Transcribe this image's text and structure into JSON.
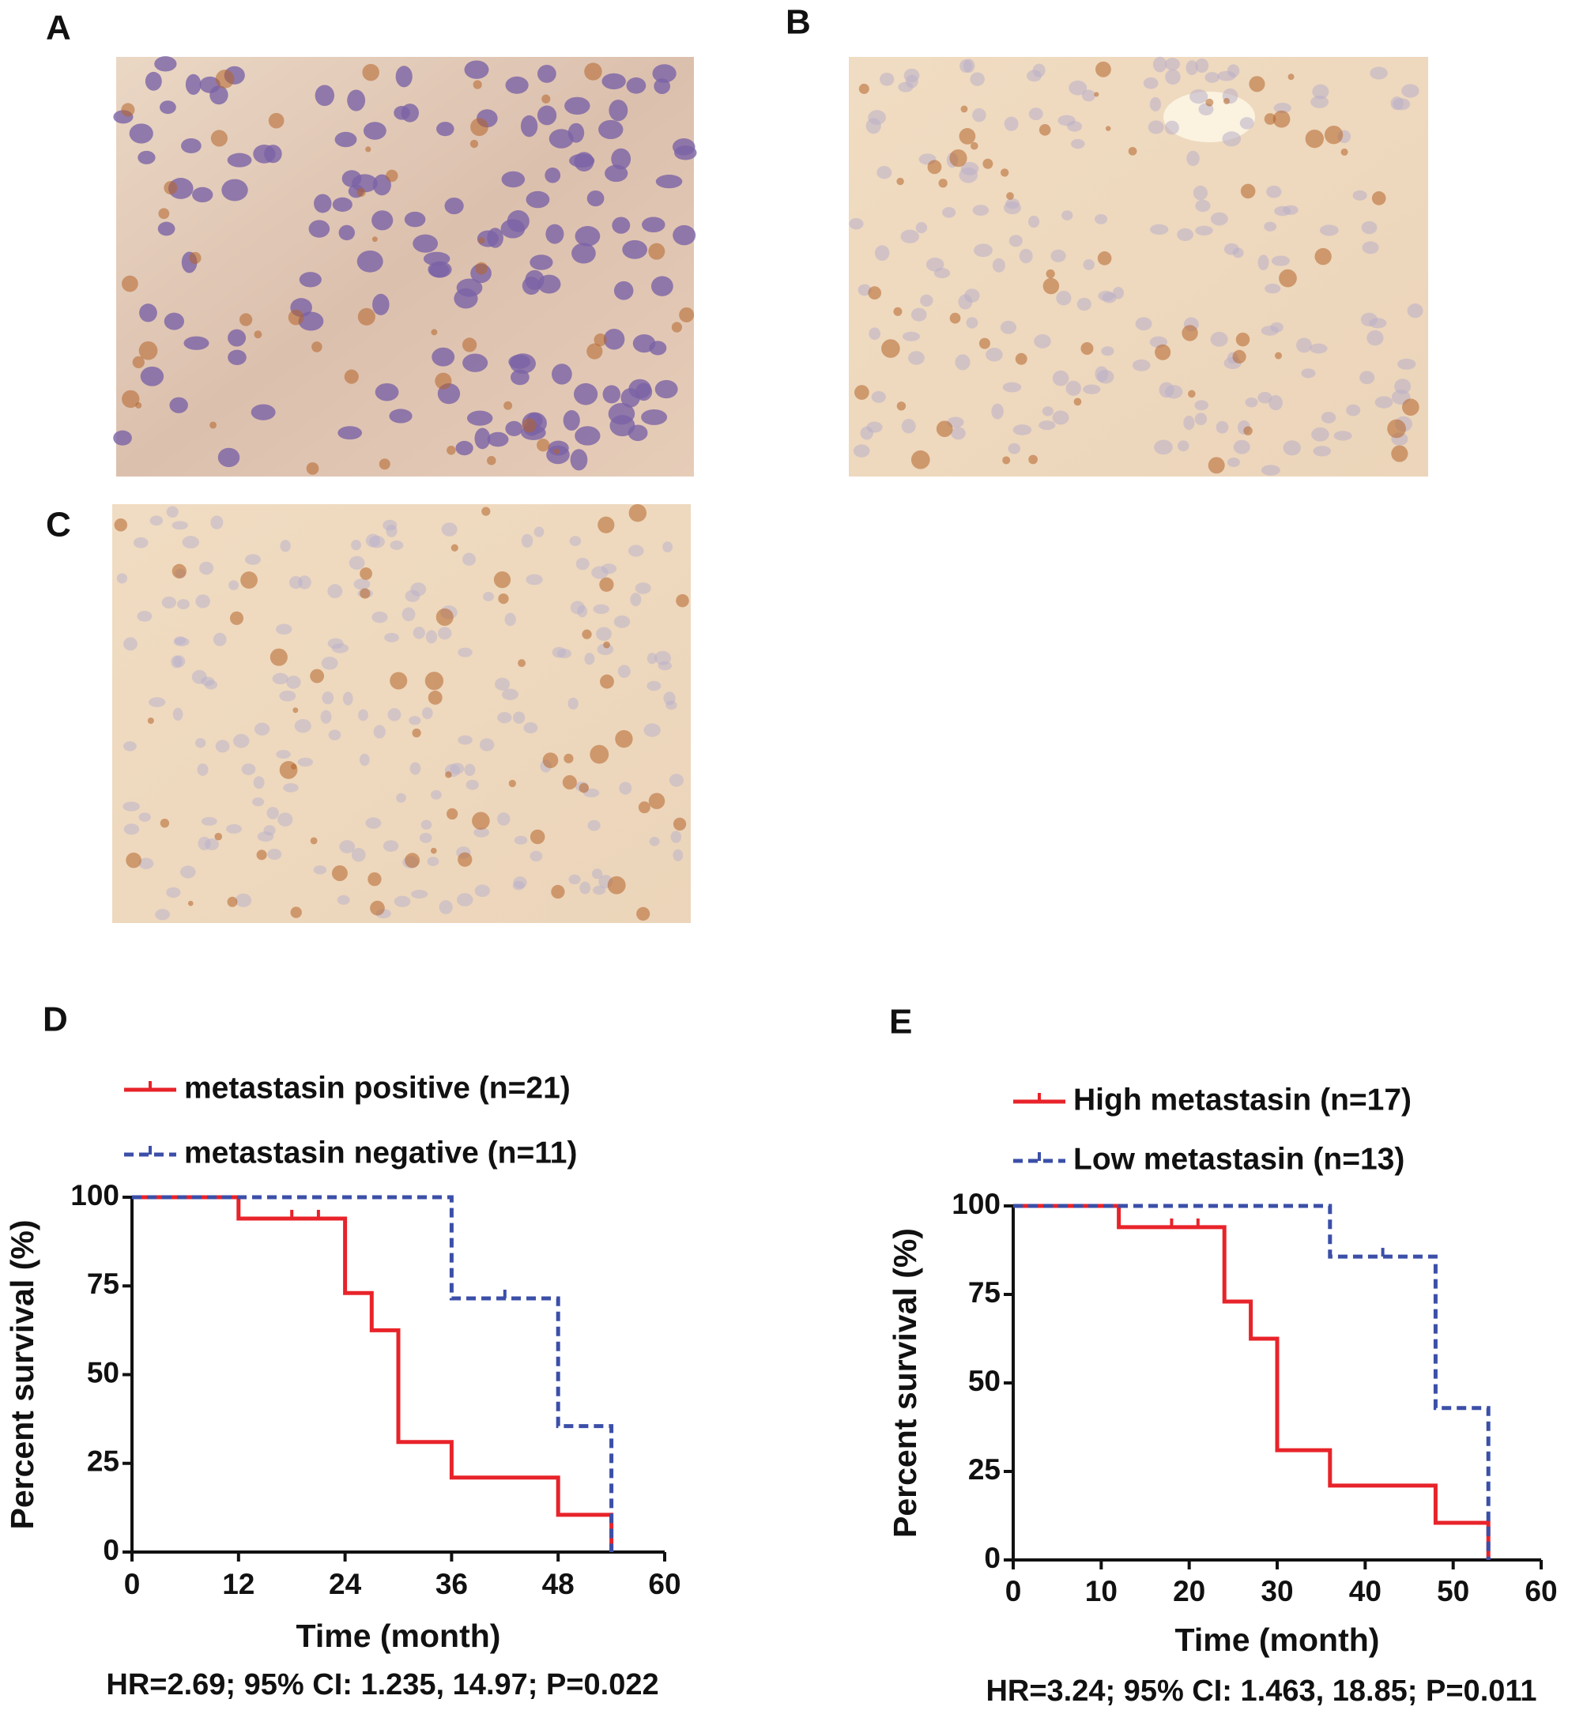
{
  "panel_labels": [
    "A",
    "B",
    "C",
    "D",
    "E"
  ],
  "chart_data": [
    {
      "type": "line",
      "step": "post",
      "series": [
        {
          "name": "metastasin positive (n=21)",
          "color": "#e8232a",
          "dash": false,
          "x": [
            0,
            12,
            24,
            27,
            30,
            36,
            48,
            54
          ],
          "values": [
            100,
            94,
            73,
            62.5,
            31,
            21,
            10.5,
            0
          ],
          "censor_x": [
            18,
            21
          ]
        },
        {
          "name": "metastasin negative (n=11)",
          "color": "#3b4fa8",
          "dash": true,
          "x": [
            0,
            36,
            48,
            54
          ],
          "values": [
            100,
            71.5,
            35.5,
            0
          ],
          "censor_x": [
            42
          ]
        }
      ],
      "xlim": [
        0,
        60
      ],
      "xticks": [
        0,
        12,
        24,
        36,
        48,
        60
      ],
      "ylim": [
        0,
        100
      ],
      "yticks": [
        0,
        25,
        50,
        75,
        100
      ],
      "x_label": "Time (month)",
      "y_label": "Percent survival (%)",
      "annotation": "HR=2.69; 95% CI: 1.235, 14.97; P=0.022"
    },
    {
      "type": "line",
      "step": "post",
      "series": [
        {
          "name": "High metastasin (n=17)",
          "color": "#e8232a",
          "dash": false,
          "x": [
            0,
            12,
            24,
            27,
            30,
            36,
            48,
            54
          ],
          "values": [
            100,
            94,
            73,
            62.5,
            31,
            21,
            10.5,
            0
          ],
          "censor_x": [
            18,
            21
          ]
        },
        {
          "name": "Low metastasin (n=13)",
          "color": "#3b4fa8",
          "dash": true,
          "x": [
            0,
            36,
            48,
            54
          ],
          "values": [
            100,
            85.7,
            42.9,
            0
          ],
          "censor_x": [
            42
          ]
        }
      ],
      "xlim": [
        0,
        60
      ],
      "xticks": [
        0,
        10,
        20,
        30,
        40,
        50,
        60
      ],
      "ylim": [
        0,
        100
      ],
      "yticks": [
        0,
        25,
        50,
        75,
        100
      ],
      "x_label": "Time (month)",
      "y_label": "Percent survival (%)",
      "annotation": "HR=3.24; 95% CI: 1.463, 18.85; P=0.011"
    }
  ]
}
